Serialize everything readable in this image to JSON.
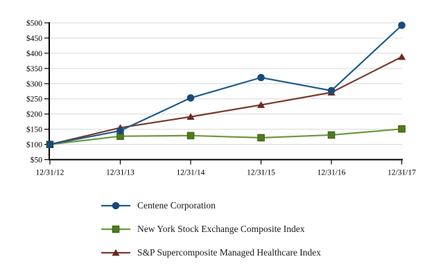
{
  "chart_data": {
    "type": "line",
    "title": "",
    "xlabel": "",
    "ylabel": "",
    "categories": [
      "12/31/12",
      "12/31/13",
      "12/31/14",
      "12/31/15",
      "12/31/16",
      "12/31/17"
    ],
    "series": [
      {
        "name": "Centene Corporation",
        "values": [
          100,
          145,
          253,
          320,
          277,
          492
        ],
        "line_color": "#1F5C8C",
        "marker": "circle",
        "marker_color": "#17497B"
      },
      {
        "name": "New York Stock Exchange Composite Index",
        "values": [
          100,
          127,
          129,
          122,
          131,
          151
        ],
        "line_color": "#6B9A3C",
        "marker": "square",
        "marker_color": "#4E7B20"
      },
      {
        "name": "S&P Supercomposite Managed Healthcare Index",
        "values": [
          100,
          155,
          191,
          230,
          271,
          388
        ],
        "line_color": "#7C3A2D",
        "marker": "triangle",
        "marker_color": "#662B1F"
      }
    ],
    "ylim": [
      50,
      500
    ],
    "y_tick_step": 50,
    "y_tick_prefix": "$",
    "grid": true,
    "gridline_color": "#D9D9D9",
    "axis_color": "#000000",
    "legend_position": "bottom-left"
  }
}
